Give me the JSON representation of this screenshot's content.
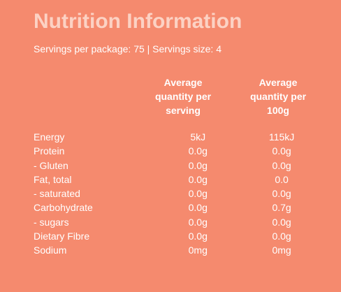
{
  "title": "Nutrition Information",
  "servings_line": "Servings per package: 75  |  Servings size: 4",
  "columns": {
    "per_serving": [
      "Average",
      "quantity per",
      "serving"
    ],
    "per_100g": [
      "Average",
      "quantity per",
      "100g"
    ]
  },
  "rows": [
    {
      "label": "Energy",
      "per_serving": "5kJ",
      "per_100g": "115kJ"
    },
    {
      "label": "Protein",
      "per_serving": "0.0g",
      "per_100g": "0.0g"
    },
    {
      "label": "- Gluten",
      "per_serving": "0.0g",
      "per_100g": "0.0g"
    },
    {
      "label": "Fat, total",
      "per_serving": "0.0g",
      "per_100g": "0.0"
    },
    {
      "label": "- saturated",
      "per_serving": "0.0g",
      "per_100g": "0.0g"
    },
    {
      "label": "Carbohydrate",
      "per_serving": "0.0g",
      "per_100g": "0.7g"
    },
    {
      "label": "- sugars",
      "per_serving": "0.0g",
      "per_100g": "0.0g"
    },
    {
      "label": "Dietary Fibre",
      "per_serving": "0.0g",
      "per_100g": "0.0g"
    },
    {
      "label": "Sodium",
      "per_serving": "0mg",
      "per_100g": "0mg"
    }
  ],
  "colors": {
    "background": "#f58a6e",
    "title": "#fcd2c4",
    "text": "#ffffff"
  }
}
